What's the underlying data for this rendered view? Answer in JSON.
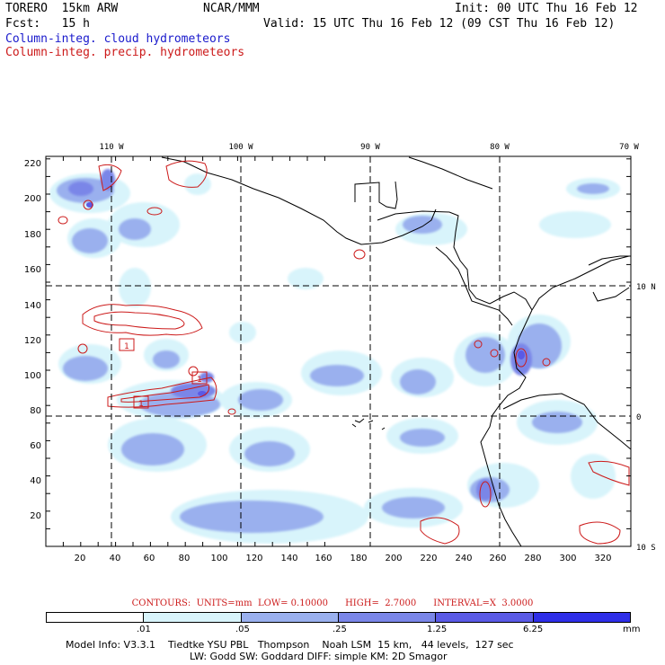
{
  "header": {
    "model": "TORERO  15km ARW",
    "center": "NCAR/MMM",
    "init": "Init: 00 UTC Thu 16 Feb 12",
    "fcst": "Fcst:   15 h",
    "valid": "Valid: 15 UTC Thu 16 Feb 12 (09 CST Thu 16 Feb 12)",
    "field1": "Column-integ. cloud hydrometeors",
    "field2": "Column-integ. precip. hydrometeors"
  },
  "map": {
    "lon_labels": [
      "110 W",
      "100 W",
      "90 W",
      "80 W",
      "70 W"
    ],
    "lat_labels": [
      "10 N",
      "0",
      "10 S"
    ],
    "y_ticks": [
      "220",
      "200",
      "180",
      "160",
      "140",
      "120",
      "100",
      "80",
      "60",
      "40",
      "20"
    ],
    "x_ticks": [
      "20",
      "40",
      "60",
      "80",
      "100",
      "120",
      "140",
      "160",
      "180",
      "200",
      "220",
      "240",
      "260",
      "280",
      "300",
      "320"
    ],
    "contour_labels": [
      "1",
      "1",
      "1"
    ]
  },
  "contours_info": "CONTOURS:  UNITS=mm  LOW= 0.10000      HIGH=  2.7000      INTERVAL=X  3.0000",
  "legend": {
    "levels": [
      ".01",
      ".05",
      ".25",
      "1.25",
      "6.25"
    ],
    "unit": "mm",
    "colors": [
      "#ffffff",
      "#d8f4fb",
      "#9ab0ee",
      "#7a86e8",
      "#5a5ae6",
      "#2e2ee8"
    ]
  },
  "model_info": {
    "line1": "Model Info: V3.3.1    Tiedtke YSU PBL   Thompson    Noah LSM  15 km,   44 levels,  127 sec",
    "line2": "LW: Godd SW: Goddard DIFF: simple KM: 2D Smagor"
  },
  "colors": {
    "cloud": "#1a1acc",
    "precip": "#cc1a1a"
  }
}
